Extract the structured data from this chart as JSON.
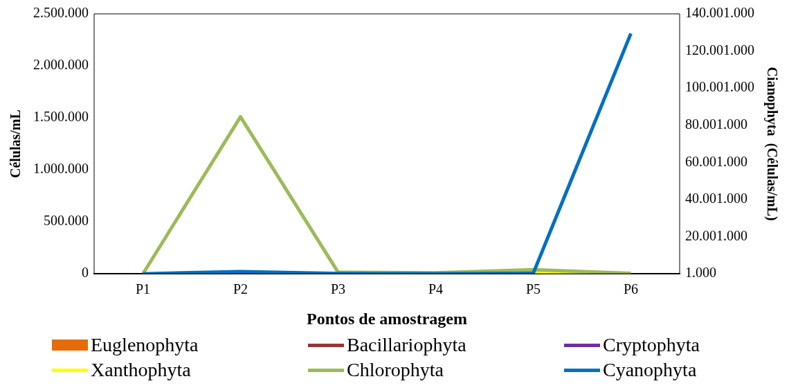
{
  "chart_data": {
    "type": "line",
    "xlabel": "Pontos de amostragem",
    "ylabel": "Células/mL",
    "y2label": "Cianophyta  (Células/mL)",
    "categories": [
      "P1",
      "P2",
      "P3",
      "P4",
      "P5",
      "P6"
    ],
    "series": [
      {
        "name": "Euglenophyta",
        "type": "bar",
        "color": "#e46c0a",
        "values": [
          null,
          null,
          null,
          null,
          null,
          null
        ]
      },
      {
        "name": "Bacillariophyta",
        "color": "#953735",
        "values": [
          null,
          null,
          null,
          null,
          null,
          null
        ]
      },
      {
        "name": "Cryptophyta",
        "color": "#7030a0",
        "values": [
          null,
          null,
          null,
          null,
          null,
          null
        ]
      },
      {
        "name": "Xanthophyta",
        "color": "#ffff00",
        "values": [
          null,
          null,
          null,
          null,
          15000,
          0
        ]
      },
      {
        "name": "Chlorophyta",
        "color": "#9bbb59",
        "values": [
          0,
          1510000,
          15000,
          10000,
          40000,
          5000
        ]
      },
      {
        "name": "Cyanophyta",
        "color": "#0070c0",
        "axis": "y2",
        "values": [
          1000,
          1200000,
          200000,
          100000,
          300000,
          129400000
        ]
      }
    ],
    "ylim": [
      0,
      2500000
    ],
    "yticks": [
      0,
      {
        "value": 500000,
        "label": "500.000"
      },
      {
        "value": 1000000,
        "label": "1.000.000"
      },
      {
        "value": 1500000,
        "label": "1.500.000"
      },
      {
        "value": 2000000,
        "label": "2.000.000"
      },
      {
        "value": 2500000,
        "label": "2.500.000"
      }
    ],
    "y2lim": [
      1000,
      140001000
    ],
    "y2ticks": [
      {
        "value": 1000,
        "label": "1.000"
      },
      {
        "value": 20001000,
        "label": "20.001.000"
      },
      {
        "value": 40001000,
        "label": "40.001.000"
      },
      {
        "value": 60001000,
        "label": "60.001.000"
      },
      {
        "value": 80001000,
        "label": "80.001.000"
      },
      {
        "value": 100001000,
        "label": "100.001.000"
      },
      {
        "value": 120001000,
        "label": "120.001.000"
      },
      {
        "value": 140001000,
        "label": "140.001.000"
      }
    ],
    "grid": false,
    "legend": "bottom",
    "marker": "none",
    "line_style": "solid"
  }
}
